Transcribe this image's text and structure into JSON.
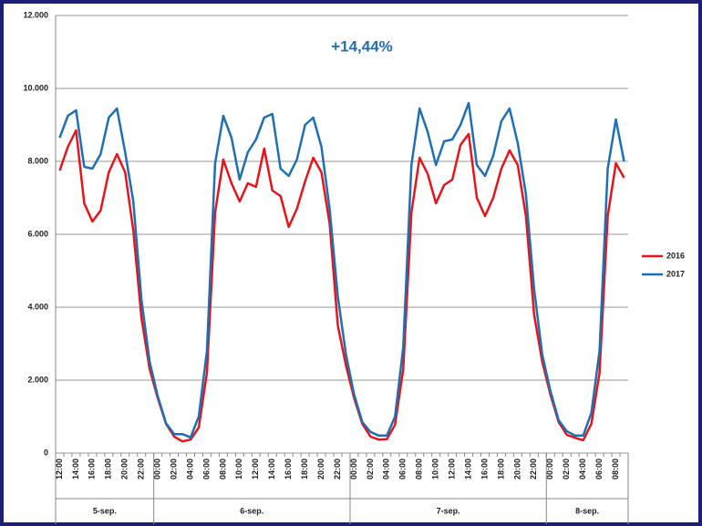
{
  "chart_data": {
    "type": "line",
    "annotation": "+14,44%",
    "categories": [
      "12:00",
      null,
      "14:00",
      null,
      "16:00",
      null,
      "18:00",
      null,
      "20:00",
      null,
      "22:00",
      null,
      "00:00",
      null,
      "02:00",
      null,
      "04:00",
      null,
      "06:00",
      null,
      "08:00",
      null,
      "10:00",
      null,
      "12:00",
      null,
      "14:00",
      null,
      "16:00",
      null,
      "18:00",
      null,
      "20:00",
      null,
      "22:00",
      null,
      "00:00",
      null,
      "02:00",
      null,
      "04:00",
      null,
      "06:00",
      null,
      "08:00",
      null,
      "10:00",
      null,
      "12:00",
      null,
      "14:00",
      null,
      "16:00",
      null,
      "18:00",
      null,
      "20:00",
      null,
      "22:00",
      null,
      "00:00",
      null,
      "02:00",
      null,
      "04:00",
      null,
      "06:00",
      null,
      "08:00",
      null
    ],
    "groups": [
      "5-sep.",
      "6-sep.",
      "7-sep.",
      "8-sep."
    ],
    "series": [
      {
        "name": "2016",
        "color": "#e8141b",
        "values": [
          7750,
          8400,
          8850,
          6850,
          6350,
          6650,
          7700,
          8200,
          7700,
          6100,
          3700,
          2300,
          1500,
          800,
          450,
          320,
          370,
          700,
          2200,
          6600,
          8050,
          7400,
          6900,
          7400,
          7300,
          8350,
          7200,
          7050,
          6200,
          6700,
          7450,
          8100,
          7700,
          6300,
          3500,
          2400,
          1500,
          800,
          450,
          370,
          380,
          780,
          2300,
          6600,
          8100,
          7650,
          6850,
          7350,
          7500,
          8450,
          8750,
          7000,
          6500,
          7000,
          7800,
          8300,
          7900,
          6500,
          3800,
          2500,
          1600,
          850,
          500,
          420,
          350,
          800,
          2200,
          6500,
          7950,
          7550
        ]
      },
      {
        "name": "2017",
        "color": "#1f6fb5",
        "values": [
          8650,
          9250,
          9400,
          7850,
          7800,
          8200,
          9200,
          9450,
          8250,
          6900,
          4200,
          2500,
          1550,
          820,
          520,
          520,
          430,
          1000,
          2800,
          7950,
          9250,
          8650,
          7500,
          8250,
          8600,
          9200,
          9300,
          7800,
          7600,
          8050,
          9000,
          9200,
          8400,
          6700,
          4300,
          2700,
          1600,
          850,
          580,
          480,
          480,
          1000,
          2900,
          7900,
          9450,
          8800,
          7900,
          8550,
          8600,
          9000,
          9600,
          7900,
          7600,
          8150,
          9100,
          9450,
          8500,
          7100,
          4500,
          2700,
          1700,
          900,
          600,
          480,
          480,
          1100,
          2800,
          7800,
          9150,
          8000
        ]
      }
    ],
    "ylim": [
      0,
      12000
    ],
    "yticks": [
      0,
      {
        "value": 2000,
        "label": "2.000"
      },
      {
        "value": 4000,
        "label": "4.000"
      },
      {
        "value": 6000,
        "label": "6.000"
      },
      {
        "value": 8000,
        "label": "8.000"
      },
      {
        "value": 10000,
        "label": "10.000"
      },
      {
        "value": 12000,
        "label": "12.000"
      }
    ],
    "grid": true,
    "legend": "right"
  }
}
